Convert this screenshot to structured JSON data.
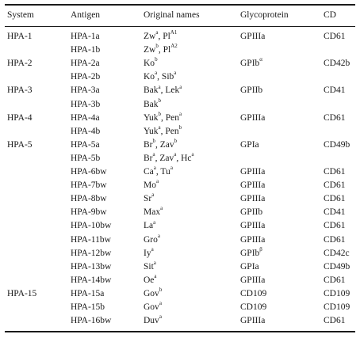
{
  "headers": {
    "system": "System",
    "antigen": "Antigen",
    "original_names": "Original names",
    "glycoprotein": "Glycoprotein",
    "cd": "CD"
  },
  "rows": [
    {
      "system": "HPA-1",
      "antigen": "HPA-1a",
      "orig": [
        [
          "Zw",
          "a"
        ],
        [
          ", Pl",
          ""
        ],
        [
          "",
          "A1"
        ]
      ],
      "gp": "GPIIIa",
      "gp_sup": "",
      "cd": "CD61"
    },
    {
      "system": "",
      "antigen": "HPA-1b",
      "orig": [
        [
          "Zw",
          "b"
        ],
        [
          ", Pl",
          ""
        ],
        [
          "",
          "A2"
        ]
      ],
      "gp": "",
      "gp_sup": "",
      "cd": ""
    },
    {
      "system": "HPA-2",
      "antigen": "HPA-2a",
      "orig": [
        [
          "Ko",
          "b"
        ]
      ],
      "gp": "GPIb",
      "gp_sup": "α",
      "cd": "CD42b"
    },
    {
      "system": "",
      "antigen": "HPA-2b",
      "orig": [
        [
          "Ko",
          "a"
        ],
        [
          ", Sib",
          "a"
        ]
      ],
      "gp": "",
      "gp_sup": "",
      "cd": ""
    },
    {
      "system": "HPA-3",
      "antigen": "HPA-3a",
      "orig": [
        [
          "Bak",
          "a"
        ],
        [
          ", Lek",
          "a"
        ]
      ],
      "gp": "GPIIb",
      "gp_sup": "",
      "cd": "CD41"
    },
    {
      "system": "",
      "antigen": "HPA-3b",
      "orig": [
        [
          "Bak",
          "b"
        ]
      ],
      "gp": "",
      "gp_sup": "",
      "cd": ""
    },
    {
      "system": "HPA-4",
      "antigen": "HPA-4a",
      "orig": [
        [
          "Yuk",
          "b"
        ],
        [
          ", Pen",
          "a"
        ]
      ],
      "gp": "GPIIIa",
      "gp_sup": "",
      "cd": "CD61"
    },
    {
      "system": "",
      "antigen": "HPA-4b",
      "orig": [
        [
          "Yuk",
          "a"
        ],
        [
          ", Pen",
          "b"
        ]
      ],
      "gp": "",
      "gp_sup": "",
      "cd": ""
    },
    {
      "system": "HPA-5",
      "antigen": "HPA-5a",
      "orig": [
        [
          "Br",
          "b"
        ],
        [
          ", Zav",
          "b"
        ]
      ],
      "gp": "GPIa",
      "gp_sup": "",
      "cd": "CD49b"
    },
    {
      "system": "",
      "antigen": "HPA-5b",
      "orig": [
        [
          "Br",
          "a"
        ],
        [
          ", Zav",
          "a"
        ],
        [
          ", Hc",
          "a"
        ]
      ],
      "gp": "",
      "gp_sup": "",
      "cd": ""
    },
    {
      "system": "",
      "antigen": "HPA-6bw",
      "orig": [
        [
          "Ca",
          "a"
        ],
        [
          ", Tu",
          "a"
        ]
      ],
      "gp": "GPIIIa",
      "gp_sup": "",
      "cd": "CD61"
    },
    {
      "system": "",
      "antigen": "HPA-7bw",
      "orig": [
        [
          "Mo",
          "a"
        ]
      ],
      "gp": "GPIIIa",
      "gp_sup": "",
      "cd": "CD61"
    },
    {
      "system": "",
      "antigen": "HPA-8bw",
      "orig": [
        [
          "Sr",
          "a"
        ]
      ],
      "gp": "GPIIIa",
      "gp_sup": "",
      "cd": "CD61"
    },
    {
      "system": "",
      "antigen": "HPA-9bw",
      "orig": [
        [
          "Max",
          "a"
        ]
      ],
      "gp": "GPIIb",
      "gp_sup": "",
      "cd": "CD41"
    },
    {
      "system": "",
      "antigen": "HPA-10bw",
      "orig": [
        [
          "La",
          "a"
        ]
      ],
      "gp": "GPIIIa",
      "gp_sup": "",
      "cd": "CD61"
    },
    {
      "system": "",
      "antigen": "HPA-11bw",
      "orig": [
        [
          "Gro",
          "a"
        ]
      ],
      "gp": "GPIIIa",
      "gp_sup": "",
      "cd": "CD61"
    },
    {
      "system": "",
      "antigen": "HPA-12bw",
      "orig": [
        [
          "Iy",
          "a"
        ]
      ],
      "gp": "GPIb",
      "gp_sup": "β",
      "cd": "CD42c"
    },
    {
      "system": "",
      "antigen": "HPA-13bw",
      "orig": [
        [
          "Sit",
          "a"
        ]
      ],
      "gp": "GPIa",
      "gp_sup": "",
      "cd": "CD49b"
    },
    {
      "system": "",
      "antigen": "HPA-14bw",
      "orig": [
        [
          "Oe",
          "a"
        ]
      ],
      "gp": "GPIIIa",
      "gp_sup": "",
      "cd": "CD61"
    },
    {
      "system": "HPA-15",
      "antigen": "HPA-15a",
      "orig": [
        [
          "Gov",
          "b"
        ]
      ],
      "gp": "CD109",
      "gp_sup": "",
      "cd": "CD109"
    },
    {
      "system": "",
      "antigen": "HPA-15b",
      "orig": [
        [
          "Gov",
          "a"
        ]
      ],
      "gp": "CD109",
      "gp_sup": "",
      "cd": "CD109"
    },
    {
      "system": "",
      "antigen": "HPA-16bw",
      "orig": [
        [
          "Duv",
          "a"
        ]
      ],
      "gp": "GPIIIa",
      "gp_sup": "",
      "cd": "CD61"
    }
  ]
}
